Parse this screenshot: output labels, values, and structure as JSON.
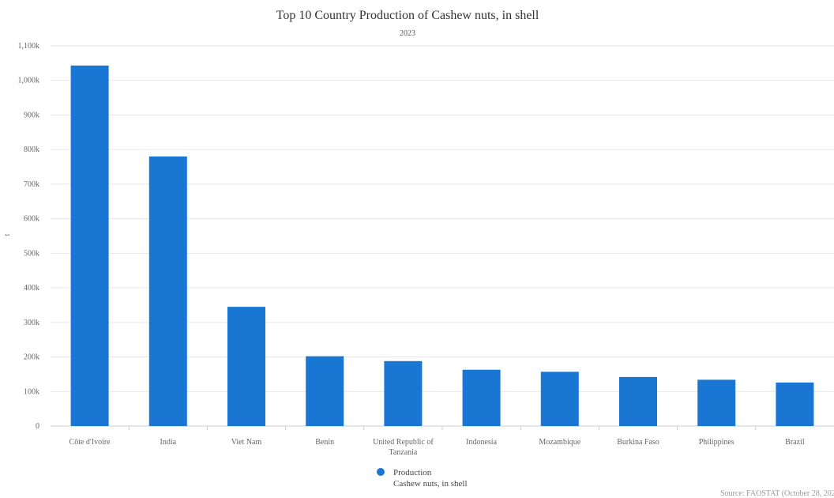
{
  "chart_data": {
    "type": "bar",
    "title": "Top 10 Country Production of Cashew nuts, in shell",
    "subtitle": "2023",
    "ylabel": "t",
    "ylim": [
      0,
      1100000
    ],
    "yticks": [
      0,
      100000,
      200000,
      300000,
      400000,
      500000,
      600000,
      700000,
      800000,
      900000,
      1000000,
      1100000
    ],
    "ytick_labels": [
      "0",
      "100k",
      "200k",
      "300k",
      "400k",
      "500k",
      "600k",
      "700k",
      "800k",
      "900k",
      "1,000k",
      "1,100k"
    ],
    "categories": [
      "Côte d'Ivoire",
      "India",
      "Viet Nam",
      "Benin",
      "United Republic of Tanzania",
      "Indonesia",
      "Mozambique",
      "Burkina Faso",
      "Philippines",
      "Brazil"
    ],
    "category_lines": [
      [
        "Côte d'Ivoire"
      ],
      [
        "India"
      ],
      [
        "Viet Nam"
      ],
      [
        "Benin"
      ],
      [
        "United Republic of",
        "Tanzania"
      ],
      [
        "Indonesia"
      ],
      [
        "Mozambique"
      ],
      [
        "Burkina Faso"
      ],
      [
        "Philippines"
      ],
      [
        "Brazil"
      ]
    ],
    "series": [
      {
        "name": "Production",
        "item": "Cashew nuts, in shell",
        "color": "#1976d2",
        "values": [
          1043000,
          780000,
          345000,
          202000,
          188000,
          163000,
          157000,
          142000,
          134000,
          126000
        ]
      }
    ],
    "grid": true,
    "legend_position": "bottom-center",
    "source": "Source: FAOSTAT (October 28, 202"
  }
}
